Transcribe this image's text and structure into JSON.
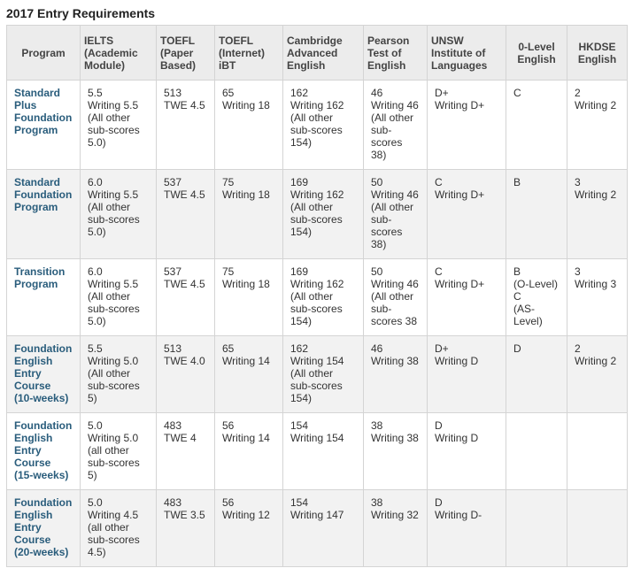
{
  "title": "2017 Entry Requirements",
  "columns": [
    "Program",
    "IELTS\n(Academic\nModule)",
    "TOEFL\n(Paper\nBased)",
    "TOEFL\n(Internet)\niBT",
    "Cambridge\nAdvanced\nEnglish",
    "Pearson\nTest of\nEnglish",
    "UNSW\nInstitute of\nLanguages",
    "0-Level\nEnglish",
    "HKDSE\nEnglish"
  ],
  "rows": [
    {
      "program": "Standard\nPlus\nFoundation\nProgram",
      "cells": [
        "5.5\nWriting 5.5\n(All other\nsub-scores\n5.0)",
        "513\nTWE 4.5",
        "65\nWriting 18",
        "162\nWriting 162\n(All other\nsub-scores\n154)",
        "46\nWriting 46\n(All other\nsub-\nscores\n38)",
        "D+\nWriting D+",
        "C",
        "2\nWriting 2"
      ]
    },
    {
      "program": "Standard\nFoundation\nProgram",
      "cells": [
        "6.0\nWriting 5.5\n(All other\nsub-scores\n5.0)",
        "537\nTWE 4.5",
        "75\nWriting 18",
        "169\nWriting 162\n(All other\nsub-scores\n154)",
        "50\nWriting 46\n(All other\nsub-\nscores\n38)",
        "C\nWriting D+",
        "B",
        "3\nWriting 2"
      ]
    },
    {
      "program": "Transition\nProgram",
      "cells": [
        "6.0\nWriting 5.5\n(All other\nsub-scores\n5.0)",
        "537\nTWE 4.5",
        "75\nWriting 18",
        "169\nWriting 162\n(All other\nsub-scores\n154)",
        "50\nWriting 46\n(All other\nsub-\nscores 38",
        "C\nWriting D+",
        "B\n(O-Level)\nC\n(AS-\nLevel)",
        "3\nWriting 3"
      ]
    },
    {
      "program": "Foundation\nEnglish\nEntry\nCourse\n(10-weeks)",
      "cells": [
        "5.5\nWriting 5.0\n(All other\nsub-scores\n5)",
        "513\nTWE 4.0",
        "65\nWriting 14",
        "162\nWriting 154\n(All other\nsub-scores\n154)",
        "46\nWriting 38",
        "D+\nWriting D",
        "D",
        "2\nWriting 2"
      ]
    },
    {
      "program": "Foundation\nEnglish\nEntry\nCourse\n(15-weeks)",
      "cells": [
        "5.0\nWriting 5.0\n(all other\nsub-scores\n5)",
        "483\nTWE 4",
        "56\nWriting 14",
        "154\nWriting 154",
        "38\nWriting 38",
        "D\nWriting D",
        "",
        ""
      ]
    },
    {
      "program": "Foundation\nEnglish\nEntry\nCourse\n(20-weeks)",
      "cells": [
        "5.0\nWriting 4.5\n(all other\nsub-scores\n4.5)",
        "483\nTWE 3.5",
        "56\nWriting 12",
        "154\nWriting 147",
        "38\nWriting 32",
        "D\nWriting D-",
        "",
        ""
      ]
    }
  ],
  "colors": {
    "program_text": "#2a5d7c",
    "header_bg": "#ececec",
    "alt_row_bg": "#f2f2f2",
    "border": "#d4d4d4"
  }
}
